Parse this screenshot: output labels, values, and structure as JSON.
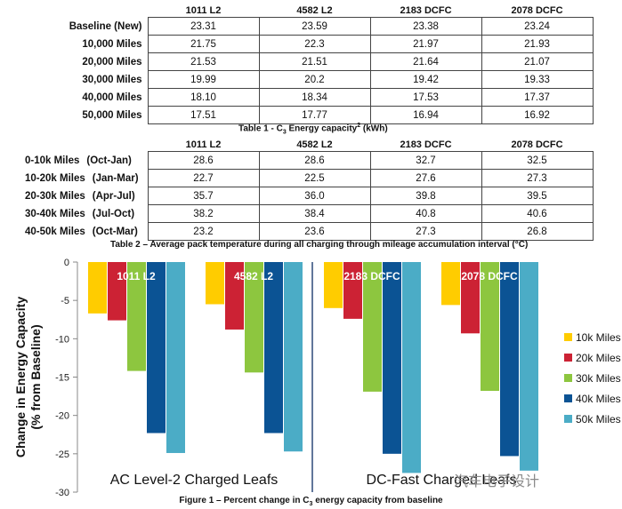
{
  "table1": {
    "headers": [
      "1011 L2",
      "4582 L2",
      "2183 DCFC",
      "2078 DCFC"
    ],
    "rows": [
      {
        "label": "Baseline (New)",
        "values": [
          "23.31",
          "23.59",
          "23.38",
          "23.24"
        ]
      },
      {
        "label": "10,000 Miles",
        "values": [
          "21.75",
          "22.3",
          "21.97",
          "21.93"
        ]
      },
      {
        "label": "20,000 Miles",
        "values": [
          "21.53",
          "21.51",
          "21.64",
          "21.07"
        ]
      },
      {
        "label": "30,000 Miles",
        "values": [
          "19.99",
          "20.2",
          "19.42",
          "19.33"
        ]
      },
      {
        "label": "40,000 Miles",
        "values": [
          "18.10",
          "18.34",
          "17.53",
          "17.37"
        ]
      },
      {
        "label": "50,000 Miles",
        "values": [
          "17.51",
          "17.77",
          "16.94",
          "16.92"
        ]
      }
    ],
    "caption_pre": "Table 1 - C",
    "caption_sub": "3",
    "caption_mid": " Energy capacity",
    "caption_sup": "2",
    "caption_post": " (kWh)"
  },
  "table2": {
    "headers": [
      "1011 L2",
      "4582 L2",
      "2183 DCFC",
      "2078 DCFC"
    ],
    "rows": [
      {
        "label": "0-10k Miles",
        "period": "(Oct-Jan)",
        "values": [
          "28.6",
          "28.6",
          "32.7",
          "32.5"
        ]
      },
      {
        "label": "10-20k Miles",
        "period": "(Jan-Mar)",
        "values": [
          "22.7",
          "22.5",
          "27.6",
          "27.3"
        ]
      },
      {
        "label": "20-30k Miles",
        "period": "(Apr-Jul)",
        "values": [
          "35.7",
          "36.0",
          "39.8",
          "39.5"
        ]
      },
      {
        "label": "30-40k Miles",
        "period": "(Jul-Oct)",
        "values": [
          "38.2",
          "38.4",
          "40.8",
          "40.6"
        ]
      },
      {
        "label": "40-50k Miles",
        "period": "(Oct-Mar)",
        "values": [
          "23.2",
          "23.6",
          "27.3",
          "26.8"
        ]
      }
    ],
    "caption": "Table 2 – Average pack temperature during all charging through mileage accumulation interval (°C)"
  },
  "chart_data": {
    "type": "bar",
    "categories": [
      "1011 L2",
      "4582 L2",
      "2183 DCFC",
      "2078 DCFC"
    ],
    "series": [
      {
        "name": "10k Miles",
        "color": "#ffcc00",
        "values": [
          -6.7,
          -5.5,
          -6.0,
          -5.6
        ]
      },
      {
        "name": "20k Miles",
        "color": "#cc2234",
        "values": [
          -7.6,
          -8.8,
          -7.4,
          -9.3
        ]
      },
      {
        "name": "30k Miles",
        "color": "#8dc63f",
        "values": [
          -14.2,
          -14.4,
          -16.9,
          -16.8
        ]
      },
      {
        "name": "40k Miles",
        "color": "#0b5394",
        "values": [
          -22.3,
          -22.3,
          -25.0,
          -25.3
        ]
      },
      {
        "name": "50k Miles",
        "color": "#4bacc6",
        "values": [
          -24.9,
          -24.7,
          -27.5,
          -27.2
        ]
      }
    ],
    "ylabel_line1": "Change in Energy Capacity",
    "ylabel_line2": "(% from Baseline)",
    "ylim": [
      -30,
      0
    ],
    "yticks": [
      0,
      -5,
      -10,
      -15,
      -20,
      -25,
      -30
    ],
    "group_labels": [
      "AC Level-2 Charged Leafs",
      "DC-Fast Charged Leafs"
    ],
    "legend_position": "right",
    "grid": false
  },
  "figure_caption_pre": "Figure  1 – Percent change in C",
  "figure_caption_sub": "3",
  "figure_caption_post": " energy capacity from baseline",
  "watermark": "汽车电子设计"
}
